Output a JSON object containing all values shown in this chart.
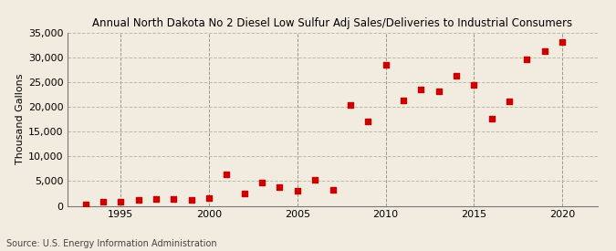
{
  "title": "Annual North Dakota No 2 Diesel Low Sulfur Adj Sales/Deliveries to Industrial Consumers",
  "ylabel": "Thousand Gallons",
  "source": "Source: U.S. Energy Information Administration",
  "background_color": "#f2ece0",
  "dot_color": "#cc0000",
  "years": [
    1993,
    1994,
    1995,
    1996,
    1997,
    1998,
    1999,
    2000,
    2001,
    2002,
    2003,
    2004,
    2005,
    2006,
    2007,
    2008,
    2009,
    2010,
    2011,
    2012,
    2013,
    2014,
    2015,
    2016,
    2017,
    2018,
    2019,
    2020
  ],
  "values": [
    300,
    900,
    800,
    1200,
    1300,
    1300,
    1200,
    1600,
    6300,
    2500,
    4700,
    3700,
    3000,
    5200,
    3200,
    20400,
    17000,
    28500,
    21300,
    23500,
    23200,
    26300,
    24400,
    17700,
    21100,
    29600,
    31200,
    33200
  ],
  "ylim": [
    0,
    35000
  ],
  "yticks": [
    0,
    5000,
    10000,
    15000,
    20000,
    25000,
    30000,
    35000
  ],
  "xlim": [
    1992,
    2022
  ],
  "xticks": [
    1995,
    2000,
    2005,
    2010,
    2015,
    2020
  ],
  "grid_color": "#bbbbaa",
  "vline_color": "#999988"
}
